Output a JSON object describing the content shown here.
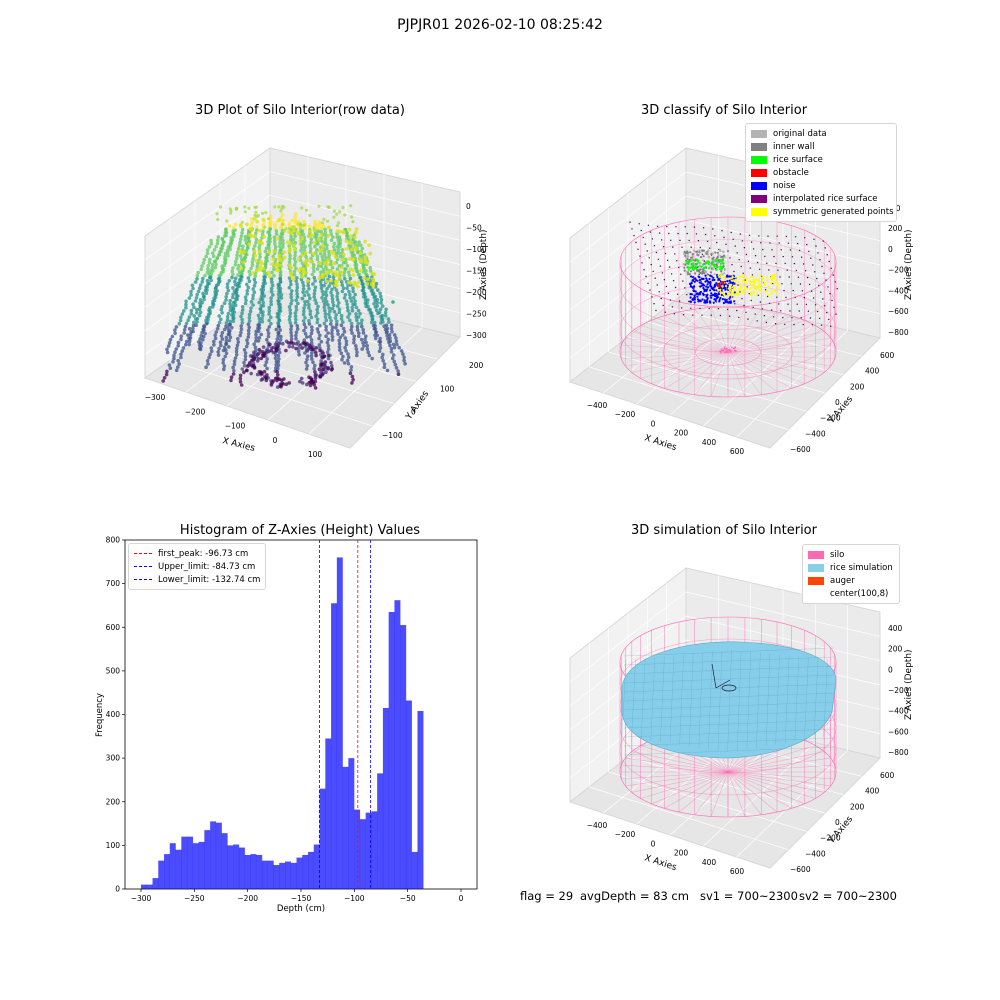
{
  "figure": {
    "suptitle": "PJPJR01 2026-02-10 08:25:42",
    "stats": {
      "flag": "flag = 29",
      "avg_depth": "avgDepth = 83 cm",
      "sv1": "sv1 = 700~2300",
      "sv2": "sv2 = 700~2300"
    }
  },
  "panels": {
    "raw": {
      "title": "3D Plot of Silo Interior(row data)",
      "xlabel": "X Axies",
      "ylabel": "Y Axies",
      "zlabel": "Z Axies (Depth)",
      "xticks": [
        "−300",
        "−200",
        "−100",
        "0",
        "100"
      ],
      "yticks": [
        "−100",
        "0",
        "100",
        "200"
      ],
      "zticks": [
        "0",
        "−50",
        "−100",
        "−150",
        "−200",
        "−250",
        "−300"
      ],
      "colormap": [
        "#440154",
        "#3b528b",
        "#21918c",
        "#5ec962",
        "#fde725"
      ]
    },
    "classify": {
      "title": "3D classify of Silo Interior",
      "xlabel": "X Axies",
      "ylabel": "Y Axies",
      "zlabel": "Z Axies (Depth)",
      "xticks": [
        "−400",
        "−200",
        "0",
        "200",
        "400",
        "600"
      ],
      "yticks": [
        "−600",
        "−400",
        "−200",
        "0",
        "200",
        "400",
        "600"
      ],
      "zticks": [
        "200",
        "0",
        "−200",
        "−400",
        "−600",
        "−800"
      ],
      "z_partial_tick": "00",
      "legend": [
        {
          "label": "original data",
          "color": "#b3b3b3"
        },
        {
          "label": "inner wall",
          "color": "#808080"
        },
        {
          "label": "rice surface",
          "color": "#00ff00"
        },
        {
          "label": "obstacle",
          "color": "#ff0000"
        },
        {
          "label": "noise",
          "color": "#0000ff"
        },
        {
          "label": "interpolated rice surface",
          "color": "#800080"
        },
        {
          "label": "symmetric generated points",
          "color": "#ffff00"
        }
      ],
      "wire_color": "#ff69b4"
    },
    "histogram": {
      "title": "Histogram of Z-Axies (Height) Values",
      "xlabel": "Depth (cm)",
      "ylabel": "Frequency",
      "xticks": [
        "−300",
        "−250",
        "−200",
        "−150",
        "−100",
        "−50",
        "0"
      ],
      "yticks": [
        "0",
        "100",
        "200",
        "300",
        "400",
        "500",
        "600",
        "700",
        "800"
      ],
      "legend": [
        {
          "label": "first_peak: -96.73 cm",
          "color": "#ff0000"
        },
        {
          "label": "Upper_limit: -84.73 cm",
          "color": "#0000ff"
        },
        {
          "label": "Lower_limit: -132.74 cm",
          "color": "#0000ff"
        }
      ]
    },
    "simulation": {
      "title": "3D simulation of Silo Interior",
      "xlabel": "X Axies",
      "ylabel": "Y Axies",
      "zlabel": "Z Axies (Depth)",
      "xticks": [
        "−400",
        "−200",
        "0",
        "200",
        "400",
        "600"
      ],
      "yticks": [
        "−600",
        "−400",
        "−200",
        "0",
        "200",
        "400",
        "600"
      ],
      "zticks": [
        "400",
        "200",
        "0",
        "−200",
        "−400",
        "−600",
        "−800"
      ],
      "legend": [
        {
          "label": "silo",
          "color": "#ff69b4"
        },
        {
          "label": "rice simulation",
          "color": "#87ceeb"
        },
        {
          "label": "auger",
          "color": "#ff4500"
        },
        {
          "label": "center(100,8)",
          "color": "#ffffff"
        }
      ]
    }
  },
  "chart_data": [
    {
      "type": "scatter",
      "title": "3D Plot of Silo Interior(row data)",
      "xlabel": "X Axies",
      "ylabel": "Y Axies",
      "zlabel": "Z Axies (Depth)",
      "xlim": [
        -320,
        150
      ],
      "ylim": [
        -150,
        270
      ],
      "zlim": [
        -320,
        10
      ],
      "colormap": "viridis"
    },
    {
      "type": "scatter",
      "title": "3D classify of Silo Interior",
      "xlabel": "X Axies",
      "ylabel": "Y Axies",
      "zlabel": "Z Axies (Depth)",
      "xlim": [
        -500,
        700
      ],
      "ylim": [
        -650,
        650
      ],
      "zlim": [
        -900,
        300
      ]
    },
    {
      "type": "bar",
      "title": "Histogram of Z-Axies (Height) Values",
      "xlabel": "Depth (cm)",
      "ylabel": "Frequency",
      "xlim": [
        -315,
        15
      ],
      "ylim": [
        0,
        800
      ],
      "bin_width": 5.4,
      "bin_start": -300,
      "values": [
        10,
        10,
        25,
        65,
        80,
        105,
        90,
        120,
        120,
        105,
        108,
        135,
        155,
        152,
        128,
        100,
        102,
        95,
        78,
        80,
        78,
        65,
        65,
        55,
        60,
        63,
        60,
        72,
        78,
        85,
        102,
        230,
        345,
        655,
        760,
        280,
        300,
        182,
        160,
        175,
        178,
        265,
        415,
        635,
        662,
        605,
        432,
        85,
        408
      ],
      "vlines": [
        {
          "name": "first_peak: -96.73 cm",
          "x": -96.73
        },
        {
          "name": "Upper_limit: -84.73 cm",
          "x": -84.73
        },
        {
          "name": "Lower_limit: -132.74 cm",
          "x": -132.74
        }
      ],
      "bar_color": "#0000ff",
      "bar_alpha": 0.7
    },
    {
      "type": "scatter",
      "title": "3D simulation of Silo Interior",
      "xlabel": "X Axies",
      "ylabel": "Y Axies",
      "zlabel": "Z Axies (Depth)",
      "xlim": [
        -500,
        700
      ],
      "ylim": [
        -650,
        650
      ],
      "zlim": [
        -900,
        450
      ]
    }
  ]
}
